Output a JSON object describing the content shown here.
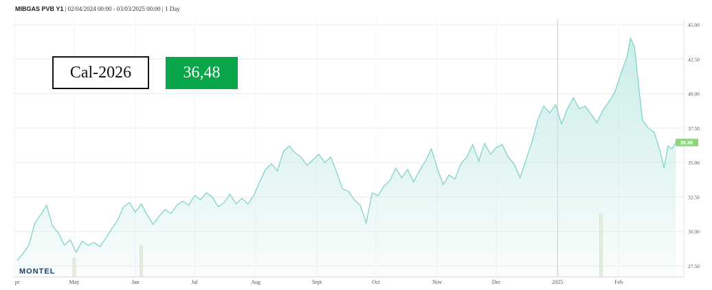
{
  "header": {
    "symbol": "MIBGAS PVB Y1",
    "range": "02/04/2024 00:00 - 03/03/2025 00:00",
    "interval": "1 Day"
  },
  "callout": {
    "label": "Cal-2026",
    "value": "36,48",
    "value_color": "#0aa64a"
  },
  "brand": "MONTEL",
  "chart_data": {
    "type": "area",
    "line_color": "#7fd3cb",
    "fill_color": "#c9ece8",
    "last_value_label": "36.48",
    "x_start": "2024-04-02",
    "x_end": "2025-03-03",
    "x_ticks": [
      {
        "date": "2024-04-01",
        "label": "pr"
      },
      {
        "date": "2024-05-01",
        "label": "May"
      },
      {
        "date": "2024-06-01",
        "label": "Jun"
      },
      {
        "date": "2024-07-01",
        "label": "Jul"
      },
      {
        "date": "2024-08-01",
        "label": "Aug"
      },
      {
        "date": "2024-09-01",
        "label": "Sept"
      },
      {
        "date": "2024-10-01",
        "label": "Oct"
      },
      {
        "date": "2024-11-01",
        "label": "Nov"
      },
      {
        "date": "2024-12-01",
        "label": "Dec"
      },
      {
        "date": "2025-01-01",
        "label": "2025"
      },
      {
        "date": "2025-02-01",
        "label": "Feb"
      }
    ],
    "y_ticks": [
      "27.50",
      "30.00",
      "32.50",
      "35.00",
      "37.50",
      "40.00",
      "42.50",
      "45.00"
    ],
    "ylim": [
      26.7,
      45.4
    ],
    "grid": true,
    "series": [
      {
        "points": [
          [
            "2024-04-02",
            27.9
          ],
          [
            "2024-04-05",
            28.4
          ],
          [
            "2024-04-08",
            29.0
          ],
          [
            "2024-04-11",
            30.6
          ],
          [
            "2024-04-14",
            31.2
          ],
          [
            "2024-04-17",
            31.9
          ],
          [
            "2024-04-20",
            30.4
          ],
          [
            "2024-04-23",
            29.9
          ],
          [
            "2024-04-26",
            29.0
          ],
          [
            "2024-04-29",
            29.4
          ],
          [
            "2024-05-02",
            28.5
          ],
          [
            "2024-05-05",
            29.3
          ],
          [
            "2024-05-08",
            29.0
          ],
          [
            "2024-05-11",
            29.2
          ],
          [
            "2024-05-14",
            28.9
          ],
          [
            "2024-05-17",
            29.5
          ],
          [
            "2024-05-20",
            30.2
          ],
          [
            "2024-05-23",
            30.8
          ],
          [
            "2024-05-26",
            31.8
          ],
          [
            "2024-05-29",
            32.1
          ],
          [
            "2024-06-01",
            31.4
          ],
          [
            "2024-06-04",
            32.0
          ],
          [
            "2024-06-07",
            31.2
          ],
          [
            "2024-06-10",
            30.5
          ],
          [
            "2024-06-13",
            31.1
          ],
          [
            "2024-06-16",
            31.6
          ],
          [
            "2024-06-19",
            31.3
          ],
          [
            "2024-06-22",
            31.9
          ],
          [
            "2024-06-25",
            32.2
          ],
          [
            "2024-06-28",
            31.9
          ],
          [
            "2024-07-01",
            32.6
          ],
          [
            "2024-07-04",
            32.3
          ],
          [
            "2024-07-07",
            32.8
          ],
          [
            "2024-07-10",
            32.5
          ],
          [
            "2024-07-13",
            31.8
          ],
          [
            "2024-07-16",
            32.1
          ],
          [
            "2024-07-19",
            32.7
          ],
          [
            "2024-07-22",
            32.0
          ],
          [
            "2024-07-25",
            32.4
          ],
          [
            "2024-07-28",
            32.0
          ],
          [
            "2024-07-31",
            32.6
          ],
          [
            "2024-08-03",
            33.6
          ],
          [
            "2024-08-06",
            34.5
          ],
          [
            "2024-08-09",
            34.9
          ],
          [
            "2024-08-12",
            34.4
          ],
          [
            "2024-08-15",
            35.8
          ],
          [
            "2024-08-18",
            36.2
          ],
          [
            "2024-08-21",
            35.7
          ],
          [
            "2024-08-24",
            35.4
          ],
          [
            "2024-08-27",
            34.8
          ],
          [
            "2024-08-30",
            35.2
          ],
          [
            "2024-09-02",
            35.6
          ],
          [
            "2024-09-05",
            35.0
          ],
          [
            "2024-09-08",
            35.4
          ],
          [
            "2024-09-11",
            34.3
          ],
          [
            "2024-09-14",
            33.1
          ],
          [
            "2024-09-17",
            32.9
          ],
          [
            "2024-09-20",
            32.3
          ],
          [
            "2024-09-23",
            31.9
          ],
          [
            "2024-09-26",
            30.6
          ],
          [
            "2024-09-29",
            32.8
          ],
          [
            "2024-10-02",
            32.6
          ],
          [
            "2024-10-05",
            33.3
          ],
          [
            "2024-10-08",
            33.7
          ],
          [
            "2024-10-11",
            34.6
          ],
          [
            "2024-10-14",
            33.9
          ],
          [
            "2024-10-17",
            34.5
          ],
          [
            "2024-10-20",
            33.6
          ],
          [
            "2024-10-23",
            34.4
          ],
          [
            "2024-10-26",
            35.1
          ],
          [
            "2024-10-29",
            36.0
          ],
          [
            "2024-11-01",
            34.6
          ],
          [
            "2024-11-04",
            33.4
          ],
          [
            "2024-11-07",
            34.1
          ],
          [
            "2024-11-10",
            33.8
          ],
          [
            "2024-11-13",
            34.9
          ],
          [
            "2024-11-16",
            35.4
          ],
          [
            "2024-11-19",
            36.3
          ],
          [
            "2024-11-22",
            35.1
          ],
          [
            "2024-11-25",
            36.4
          ],
          [
            "2024-11-28",
            35.6
          ],
          [
            "2024-12-01",
            36.1
          ],
          [
            "2024-12-04",
            36.3
          ],
          [
            "2024-12-07",
            35.4
          ],
          [
            "2024-12-10",
            34.9
          ],
          [
            "2024-12-13",
            33.9
          ],
          [
            "2024-12-16",
            35.2
          ],
          [
            "2024-12-19",
            36.5
          ],
          [
            "2024-12-22",
            38.1
          ],
          [
            "2024-12-25",
            39.1
          ],
          [
            "2024-12-28",
            38.6
          ],
          [
            "2024-12-31",
            39.2
          ],
          [
            "2025-01-03",
            37.8
          ],
          [
            "2025-01-06",
            38.9
          ],
          [
            "2025-01-09",
            39.7
          ],
          [
            "2025-01-12",
            38.9
          ],
          [
            "2025-01-15",
            39.1
          ],
          [
            "2025-01-18",
            38.5
          ],
          [
            "2025-01-21",
            37.9
          ],
          [
            "2025-01-24",
            38.8
          ],
          [
            "2025-01-27",
            39.4
          ],
          [
            "2025-01-30",
            40.1
          ],
          [
            "2025-02-02",
            41.4
          ],
          [
            "2025-02-05",
            42.6
          ],
          [
            "2025-02-07",
            44.0
          ],
          [
            "2025-02-09",
            43.4
          ],
          [
            "2025-02-11",
            40.7
          ],
          [
            "2025-02-13",
            38.1
          ],
          [
            "2025-02-16",
            37.5
          ],
          [
            "2025-02-19",
            37.2
          ],
          [
            "2025-02-22",
            35.8
          ],
          [
            "2025-02-24",
            34.6
          ],
          [
            "2025-02-26",
            36.2
          ],
          [
            "2025-02-28",
            36.0
          ],
          [
            "2025-03-02",
            36.48
          ]
        ]
      }
    ],
    "volume_bars": [
      {
        "date": "2024-05-01",
        "value": 0.3
      },
      {
        "date": "2024-06-04",
        "value": 0.5
      },
      {
        "date": "2025-01-23",
        "value": 1.0
      }
    ]
  }
}
